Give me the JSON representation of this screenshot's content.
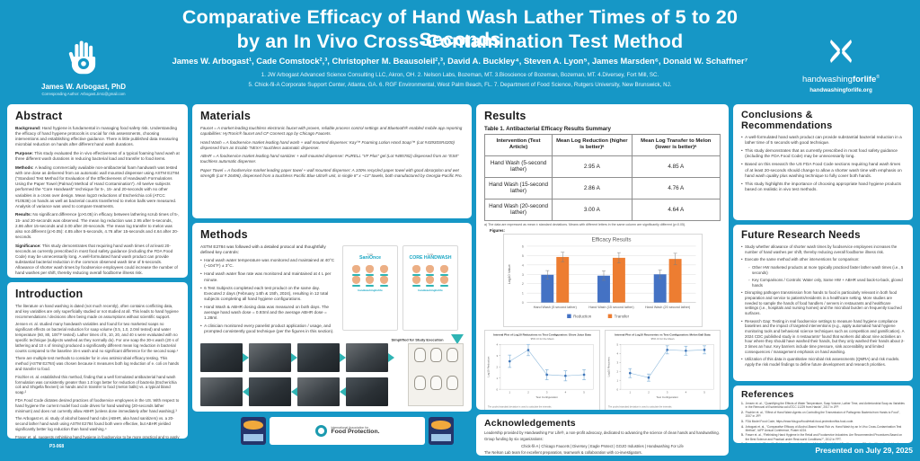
{
  "colors": {
    "background_teal": "#1697C6",
    "accent_teal": "#2FB4B4",
    "bar_blue": "#4472C4",
    "bar_orange": "#ED7D31",
    "interval_blue": "#8FBADC",
    "marker_blue": "#3E74B8"
  },
  "header": {
    "title_line1": "Comparative Efficacy of Hand Wash Lather Times of 5 to 20 Seconds",
    "title_line2": "by an In Vivo Cross-Contamination Test Method",
    "authors": "James W. Arbogast¹, Cade Comstock²,³, Christopher M. Beausoleil²,³, David A. Buckley⁴, Steven A. Lyon⁵, James Marsden⁶, Donald W. Schaffner⁷",
    "affiliations_line1": "1. JW Arbogast Advanced Science Consulting LLC, Akron, OH. 2. Nelson Labs, Bozeman, MT. 3.Bioscience of Bozeman, Bozeman, MT. 4.Diversey, Fort Mill, SC.",
    "affiliations_line2": "5. Chick-fil-A Corporate Support Center, Atlanta, GA. 6. RGF Environmental, West Palm Beach, FL. 7. Department of Food Science, Rutgers University, New Brunswick, NJ.",
    "corresponding": {
      "name": "James W. Arbogast, PhD",
      "contact": "Corresponding Author: Arbogast.Jim1@gmail.com"
    },
    "brand": {
      "name_light": "handwashing",
      "name_bold": "forlife",
      "registered": "®",
      "url": "handwashingforlife.org"
    }
  },
  "abstract": {
    "heading": "Abstract",
    "sections": [
      {
        "label": "Background:",
        "text": "Hand hygiene is fundamental in managing food safety risk. Understanding the efficacy of hand hygiene protocols is crucial for risk assessments, choosing interventions and establishing effective guidance. There is little published data measuring microbial reduction on hands after different hand wash durations."
      },
      {
        "label": "Purpose:",
        "text": "This study evaluated the in vivo effectiveness of a typical foaming hand wash at three different wash durations in reducing bacterial load and transfer to food items."
      },
      {
        "label": "Methods:",
        "text": "A leading commercially available non-antibacterial foam handwash was tested with one dose as delivered from an automatic wall mounted dispenser using ASTM E2784 (“Standard Test Method for Evaluation of the Effectiveness of Handwash Formulations Using the Paper Towel (Palmar) Method of Hand Contamination”). All twelve subjects performed the “Core Handwash” technique for 5-, 15- and 20-seconds with no other variables in a cross over design. Mean log10 reductions of Escherichia coli (ATCC #10536) on hands as well as bacterial counts transferred to melon balls were measured. Analysis of variance was used to compare treatments."
      },
      {
        "label": "Results:",
        "text": "No significant difference (p>0.05) in efficacy between lathering scrub times of 5-, 15- and 20-seconds was observed. The mean log reduction was 2.95 after 5-seconds, 2.86 after 15-seconds and 3.00 after 20-seconds. The mean log transfer to melon was also not different (p>0.05): 4.85 after 5-seconds, 4.76 after 15-seconds and 4.64 after 20-seconds."
      },
      {
        "label": "Significance:",
        "text": "This study demonstrates that requiring hand wash times of at least 20-seconds as currently prescribed in most food safety guidance (including the FDA Food Code) may be unnecessarily long. A well-formulated hand wash product can provide substantial bacterial reduction in the common observed wash time of 5-seconds. Allowance of shorter wash times by foodservice employees could increase the number of hand washes per shift, thereby reducing overall foodborne illness risk."
      }
    ]
  },
  "introduction": {
    "heading": "Introduction",
    "paragraphs": [
      "The literature on hand washing is dated (not much recently), often contains conflicting data, and key variables are only superficially studied or not studied at all. This leads to hand hygiene recommendations / decisions often being made on assumptions without scientific support.",
      "Jensen et. al. studied many handwash variables and found for two marketed soaps no significant effects on bacterial reduction for soap volume (0.5, 1.0, 2.0ml tested) and water temperature (60, 80, 100°F tested). Lather times of 5, 10, 20, and 40 s were evaluated with no specific technique (subjects washed as they normally do). For one soap the 30-s wash (20 s of lathering and 10 s of rinsing) produced a significantly different mean log reduction in bacterial counts compared to the baseline 15-s wash and no significant difference for the second soap.¹",
      "There are multiple test methods to consider for in vivo antimicrobial efficacy testing. This method (ASTM E2784) was chosen because it measures both log reduction of e. coli on hands and transfer to food.",
      "Fischler et. al. established this method, finding that a well formulated antibacterial hand wash formulation was consistently greater than 1.0 logs better for reduction of bacteria (Escherichia coli and Shigella flexneri) on hands and in transfer to food (melon balls) vs. a typical bland soap.²",
      "FDA Food Code dictates desired practices of foodservice employees in the US. With respect to hand hygiene the current model food code drives for hand washing (20-seconds lather minimum) and does not currently allow ABHR (unless done immediately after hand washing).³",
      "The Arbogast et. al. study of alcohol based hand rubs (ABHR, aka hand sanitizers) vs. a 20-second lather hand wash using ASTM E2784 found both were effective, but ABHR yielded significantly better log reduction than hand washing.⁴",
      "Fraser et. al. suggests rethinking hand hygiene in foodservice to be more practical and to apply healthcare guidance and best practices.⁵",
      "The Boyce et. al. literature review for food handlers hand hygiene suggests ABHR would be beneficial at reducing pathogens on hands when hands are not heavily soiled.⁶"
    ]
  },
  "materials": {
    "heading": "Materials",
    "items": [
      "Faucet = A market leading touchless electronic faucet with proven, reliable process control settings and Bluetooth® enabled mobile app reporting capabilities: HyTronic® faucet and CF Connect app by Chicago Faucets.",
      "Hand Wash = A foodservice market leading hand wash + wall mounted dispenser: Kay™ Foaming Lotion Hand Soap™ (Lot #43930SR4200) dispensed from an Ecolab “NEXA” touchless automatic dispenser.",
      "ABHR = A foodservice market leading hand sanitizer + wall mounted dispenser: PURELL “VF Plus” gel (Lot #485782) dispensed from an “ES8” touchless automatic dispenser.",
      "Paper Towel = A foodservice market leading paper towel + wall mounted dispenser: A 100% recycled paper towel with good absorption and wet strength (Lot # 26496), dispensed from a touchless Pacific Blue Ultra® unit, in single 8\" x ~13\" towels, both manufactured by Georgia-Pacific Pro."
    ]
  },
  "methods": {
    "heading": "Methods",
    "intro": "ASTM E2784 was followed with a detailed protocol and thoughtfully defined key controls:",
    "bullets": [
      "Hand wash water temperature was monitored and maintained at 40°C (~104°F) ± 3°C.",
      "Hand wash water flow rate was monitored and maintained at 4 L per minute.",
      "6 Test Subjects completed each test product on the same day. Executed 2 days (February 14th & 15th, 2024), resulting in 12 total subjects completing all hand hygiene configurations.",
      "Hand Wash & ABHR dosing data was measured on both days. The average hand wash dose = 0.93ml and the average ABHR dose = 1.28ml.",
      "A clinician monitored every panelist product application / usage, and prompted consistently good technique (per the figures in this section)."
    ],
    "figures": {
      "thumb1_the": "THE",
      "thumb1_title": "SaniOnce",
      "thumb1_foot": "handwashingforlife",
      "thumb2_the": "THE",
      "thumb2_title": "CORE HANDWASH",
      "thumb2_foot": "handwashingforlife",
      "arrow_caption": "Simplified for Study Execution"
    }
  },
  "results": {
    "heading": "Results",
    "table_caption": "Table 1. Antibacterial Efficacy Results Summary",
    "table": {
      "columns": [
        "Intervention (Test Article)",
        "Mean Log Reduction (higher is better)ᵃ",
        "Mean Log Transfer to Melon (lower is better)ᵃ"
      ],
      "rows": [
        [
          "Hand Wash (5-second lather)",
          "2.95 A",
          "4.85 A"
        ],
        [
          "Hand Wash (15-second lather)",
          "2.86 A",
          "4.76 A"
        ],
        [
          "Hand Wash (20-second lather)",
          "3.00 A",
          "4.64 A"
        ]
      ]
    },
    "footnote": "a)   The data are expressed as mean ± standard deviations. Means with different letters in the same column are significantly different (p<0.05).",
    "figures_label": "Figures:"
  },
  "chart_data": [
    {
      "type": "bar",
      "title": "Efficacy Results",
      "categories": [
        "Hand Wash (5 second lather)",
        "Hand Wash (15 second lather)",
        "Hand Wash (20 second lather)"
      ],
      "series": [
        {
          "name": "Reduction",
          "color": "#4472C4",
          "values": [
            2.95,
            2.86,
            3.0
          ],
          "error": [
            0.45,
            0.5,
            0.45
          ]
        },
        {
          "name": "Transfer",
          "color": "#ED7D31",
          "values": [
            4.85,
            4.76,
            4.64
          ],
          "error": [
            0.5,
            0.55,
            0.6
          ]
        }
      ],
      "ylabel": "Log10 Value",
      "ylim": [
        0,
        6
      ],
      "grid": true,
      "legend_position": "bottom"
    },
    {
      "type": "line",
      "title": "Interval Plot of Log10 Reductions vs Test Configuration: Glove Juice Data",
      "subtitle": "95% CI for the Mean",
      "x": [
        "1",
        "2",
        "3",
        "4",
        "5"
      ],
      "y": [
        2.5,
        3.5,
        1.3,
        1.2,
        1.3
      ],
      "ci": [
        0.55,
        0.5,
        0.45,
        0.45,
        0.45
      ],
      "xlabel": "Test Configuration",
      "ylabel": "Log10 Reduction",
      "ylim": [
        0,
        4
      ],
      "footnote": "The pooled standard deviation is used to calculate the intervals."
    },
    {
      "type": "line",
      "title": "Interval Plot of Log10 Recoveries vs Test Configuration: Melon Ball Data",
      "subtitle": "95% CI for the Mean",
      "x": [
        "1",
        "2",
        "3",
        "4",
        "5"
      ],
      "y": [
        1.8,
        1.3,
        4.4,
        4.3,
        4.4
      ],
      "ci": [
        0.5,
        0.4,
        0.45,
        0.5,
        0.45
      ],
      "xlabel": "Test Configuration",
      "ylabel": "Log10 Recovery",
      "ylim": [
        0,
        5
      ],
      "footnote": "The pooled standard deviation is used to calculate the intervals."
    }
  ],
  "acknowledgements": {
    "heading": "Acknowledgements",
    "lines": [
      "Leadership provided by Handwashing For Life®, a non-profit advocacy, dedicated to advancing the science of clean hands and handwashing.",
      "Group funding by six organizations:",
      "Chick-fil-A  |  Chicago Faucets  |  Diversey  |  Eagle Protect  |  GOJO Industries  |  Handwashing For Life",
      "The Nelson Lab team for excellent preparation, teamwork & collaboration with co-investigators.",
      "Tatum Arbogast for contributing to content and poster design."
    ]
  },
  "conclusions": {
    "heading": "Conclusions & Recommendations",
    "bullets": [
      "A well-formulated hand wash product can provide substantial bacterial reduction in a lather time of 5 seconds with good technique.",
      "This study demonstrates that as currently prescribed in most food safety guidance (including the FDA Food Code) may be unnecessarily long.",
      "Based on this research the US FDA Food Code sections requiring hand wash times of at least 20-seconds should change to allow a shorter wash time with emphasis on hand wash quality plus washing technique to fully cover both hands.",
      "This study highlights the importance of choosing appropriate hand hygiene products based on realistic in vivo test methods."
    ]
  },
  "future": {
    "heading": "Future Research Needs",
    "bullets": [
      {
        "text": "Study whether allowance of shorter wash times by foodservice employees increases the number of hand washes per shift, thereby reducing overall foodborne illness risk."
      },
      {
        "text": "Execute the same method with other interventions for comparison:",
        "subs": [
          "Other HW marketed products at more typically practiced faster lather wash times (i.e., 5 seconds)",
          "Key Comparisons / Controls: Water only, Same HW + ABHR used back-to-back, gloved hands"
        ]
      },
      {
        "text": "Disrupting pathogen transmission from hands to food is particularly relevant in both food preparation and service to patients/residents in a healthcare setting. More studies are needed to sample the hands of food handlers / servers in restaurants and healthcare settings (i.e., hospitals and nursing homes) and the microbial burden on frequently touched surfaces."
      },
      {
        "text": "Research Gap: Testing in real foodservice settings to measure hand hygiene compliance baselines and the impact of targeted interventions (e.g., apply automated hand hygiene monitoring tools and behavioral science techniques such as competition and gamification). A 2024 CDC published study in 4 restaurants⁷ found that workers did about nine activities an hour where they should have washed their hands, but they only washed their hands about 2-3 times an hour. Key barriers include time pressure, sink accessibility and limited consequences / management emphasis on hand washing."
      },
      {
        "text": "Utilization of this data in quantitative microbial risk assessments (QMRA) and risk models. Apply the risk model findings to define future development and research priorities."
      }
    ]
  },
  "references": {
    "heading": "References",
    "items": [
      "Jensen et. al., “Quantifying the Effects of Water Temperature, Soap Volume, Lather Time, and Antimicrobial Soap as Variables in the Removal of Escherichia coli ATCC 11229 from Hands”, 2017 in JFP.",
      "Fischler et. al., “Effect of Hand Wash Agents on Controlling the Transmission of Pathogenic Bacteria from Hands to Food”, 2007 in JFP.",
      "FDA Model Food Code, https://www.fda.gov/food/retail-food-protection/fda-food-code.",
      "Arbogast et. al., “Comparative Efficacy of Alcohol-Based Hand Rub vs. Hand Wash by an In Vivo Cross-Contamination Test Method”, IAFP Annual Conference, Poster #224.",
      "Fraser et. al., “Rethinking Hand Hygiene in the Retail and Foodservice Industries: Are Recommended Procedures Based on the Best Science and Practical under Real-world Conditions?”, 2012 in FPT.",
      "Boyce et. al., “Scientific Evidence Supports the Use of Alcohol-Based Hand Sanitizers as an Effective Alternative to Hand Washing in Retail Food and Food Service Settings When Heavy Soiling is Not Present on Hands”, 2021 in JFP.",
      "Environmental Health Specialists Network (EHS-Net) research published on the CDC Website: https://www.cdc.gov/restaurant-food-safety/php/practices/handwashing.html."
    ]
  },
  "footer": {
    "poster_number": "P3-068",
    "presented": "Presented on July 29, 2025",
    "iafp_line1": "International Association for",
    "iafp_line2": "Food Protection."
  }
}
